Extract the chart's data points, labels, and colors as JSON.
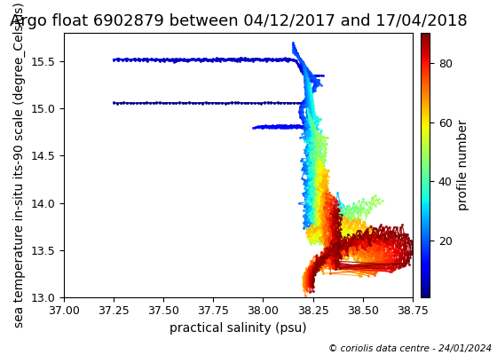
{
  "title": "Argo float 6902879 between 04/12/2017 and 17/04/2018",
  "xlabel": "practical salinity (psu)",
  "ylabel": "sea temperature in-situ its-90 scale (degree_Celsius)",
  "colorbar_label": "profile number",
  "colorbar_ticks": [
    20,
    40,
    60,
    80
  ],
  "xlim": [
    37.0,
    38.75
  ],
  "ylim": [
    13.0,
    15.8
  ],
  "xticks": [
    37.0,
    37.25,
    37.5,
    37.75,
    38.0,
    38.25,
    38.5,
    38.75
  ],
  "yticks": [
    13.0,
    13.5,
    14.0,
    14.5,
    15.0,
    15.5
  ],
  "colormap": "jet",
  "vmin": 1,
  "vmax": 90,
  "copyright": "© coriolis data centre - 24/01/2024",
  "title_fontsize": 13,
  "label_fontsize": 10,
  "tick_fontsize": 9
}
